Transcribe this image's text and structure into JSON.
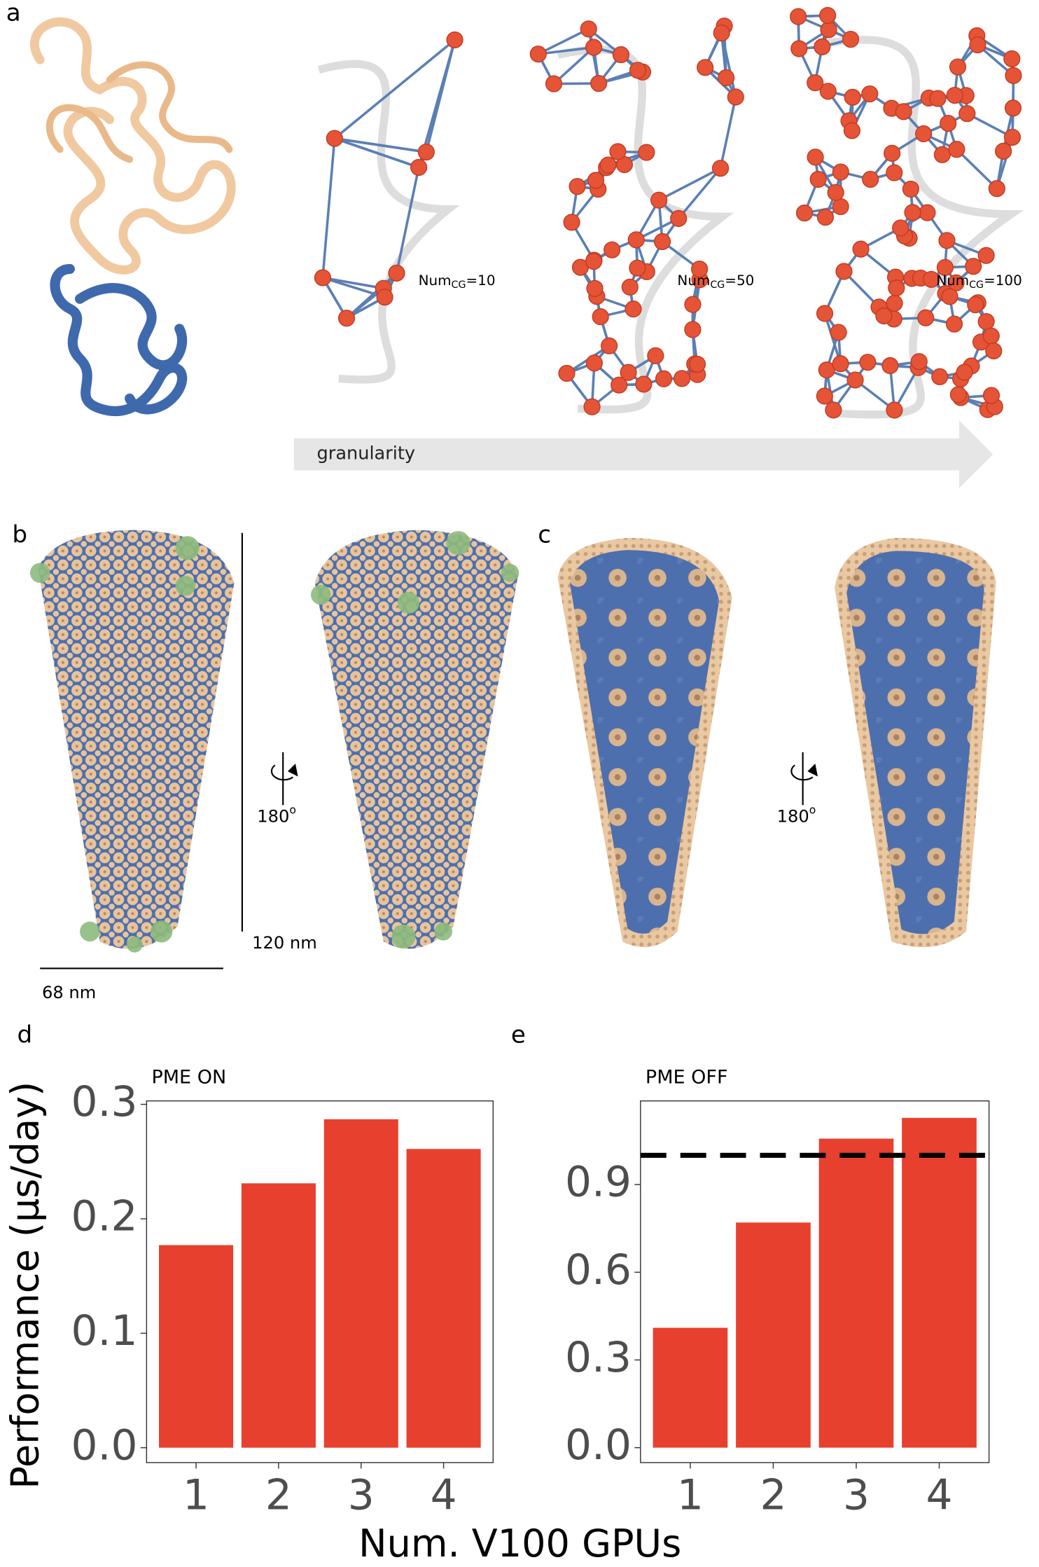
{
  "panel_a": {
    "label": "a",
    "annotations": [
      {
        "base": "Num",
        "sub": "CG",
        "rest": "=10"
      },
      {
        "base": "Num",
        "sub": "CG",
        "rest": "=50"
      },
      {
        "base": "Num",
        "sub": "CG",
        "rest": "=100"
      }
    ],
    "arrow_label": "granularity"
  },
  "panel_b": {
    "label": "b",
    "rotation": {
      "base": "180",
      "sup": "o"
    },
    "scale_vertical": "120 nm",
    "scale_horizontal": "68 nm"
  },
  "panel_c": {
    "label": "c",
    "rotation": {
      "base": "180",
      "sup": "o"
    }
  },
  "y_axis_label": "Performance (µs/day)",
  "x_axis_label": "Num. V100 GPUs",
  "chart_data": [
    {
      "type": "bar",
      "panel_label": "d",
      "title": "PME ON",
      "categories": [
        "1",
        "2",
        "3",
        "4"
      ],
      "values": [
        0.177,
        0.231,
        0.287,
        0.261
      ],
      "color": "#e8402f",
      "ylim": [
        -0.013,
        0.303
      ],
      "yticks": [
        {
          "value": 0,
          "label": "0.0"
        },
        0.1,
        0.2,
        0.3
      ]
    },
    {
      "type": "bar",
      "panel_label": "e",
      "title": "PME OFF",
      "categories": [
        "1",
        "2",
        "3",
        "4"
      ],
      "values": [
        0.41,
        0.77,
        1.057,
        1.128
      ],
      "color": "#e8402f",
      "ylim": [
        -0.051,
        1.186
      ],
      "yticks": [
        {
          "value": 0,
          "label": "0.0"
        },
        0.3,
        0.6,
        0.9
      ],
      "reference_line": {
        "value": 1.0,
        "color": "#000000"
      }
    }
  ]
}
